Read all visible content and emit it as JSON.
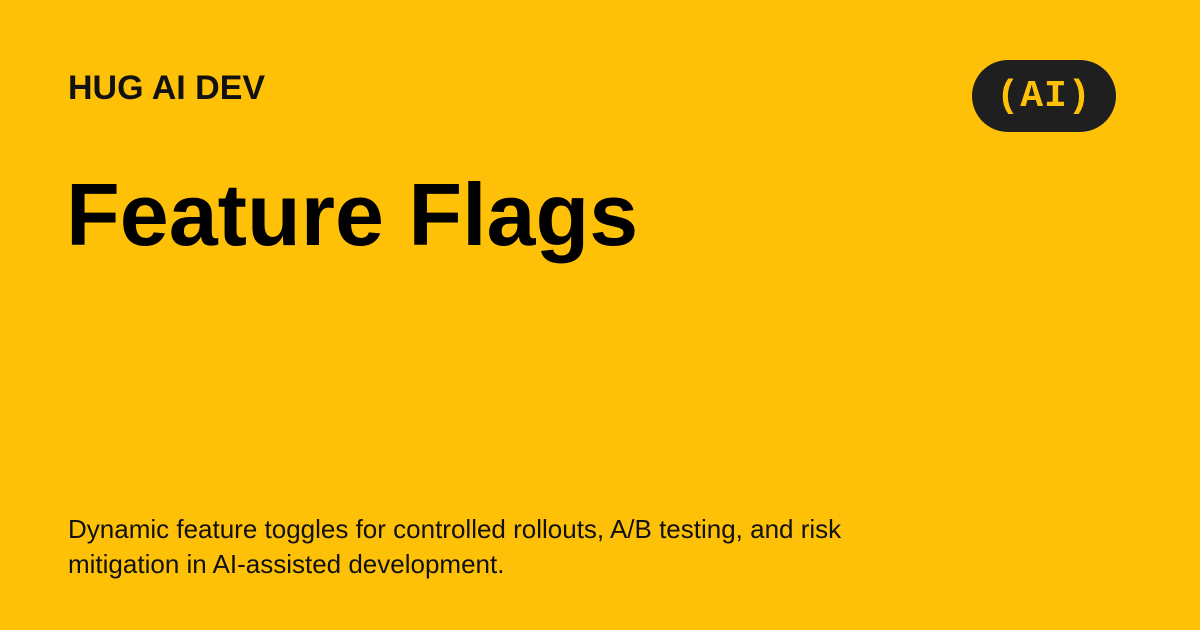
{
  "brand": {
    "name": "HUG AI DEV",
    "badge_text": "(AI)"
  },
  "page": {
    "title": "Feature Flags",
    "description": "Dynamic feature toggles for controlled rollouts, A/B testing, and risk mitigation in AI-assisted development."
  },
  "colors": {
    "background": "#FFC107",
    "text": "#111111",
    "badge_background": "#1F1F1F",
    "badge_text": "#FFC107"
  }
}
